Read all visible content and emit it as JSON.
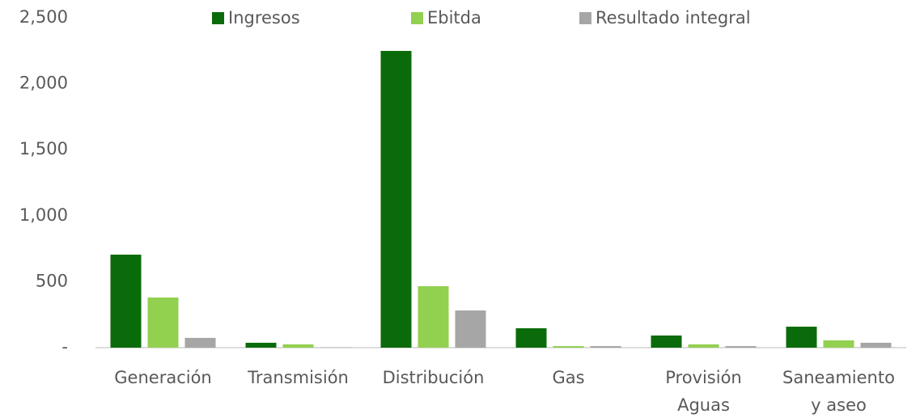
{
  "chart_data": {
    "type": "bar",
    "categories": [
      "Generación",
      "Transmisión",
      "Distribución",
      "Gas",
      "Provisión Aguas",
      "Saneamiento y aseo"
    ],
    "series": [
      {
        "name": "Ingresos",
        "color": "#0a6b0a",
        "values": [
          705,
          37,
          2249,
          147,
          92,
          159
        ]
      },
      {
        "name": "Ebitda",
        "color": "#92d050",
        "values": [
          380,
          25,
          466,
          12,
          25,
          55
        ]
      },
      {
        "name": "Resultado integral",
        "color": "#a6a6a6",
        "values": [
          74,
          2,
          282,
          12,
          12,
          37
        ]
      }
    ],
    "ylim": [
      0,
      2500
    ],
    "yticks": [
      {
        "value": 0,
        "label": "-"
      },
      500,
      {
        "value": 1000,
        "label": "1,000"
      },
      {
        "value": 1500,
        "label": "1,500"
      },
      {
        "value": 2000,
        "label": "2,000"
      },
      {
        "value": 2500,
        "label": "2,500"
      }
    ],
    "legend": "top"
  }
}
